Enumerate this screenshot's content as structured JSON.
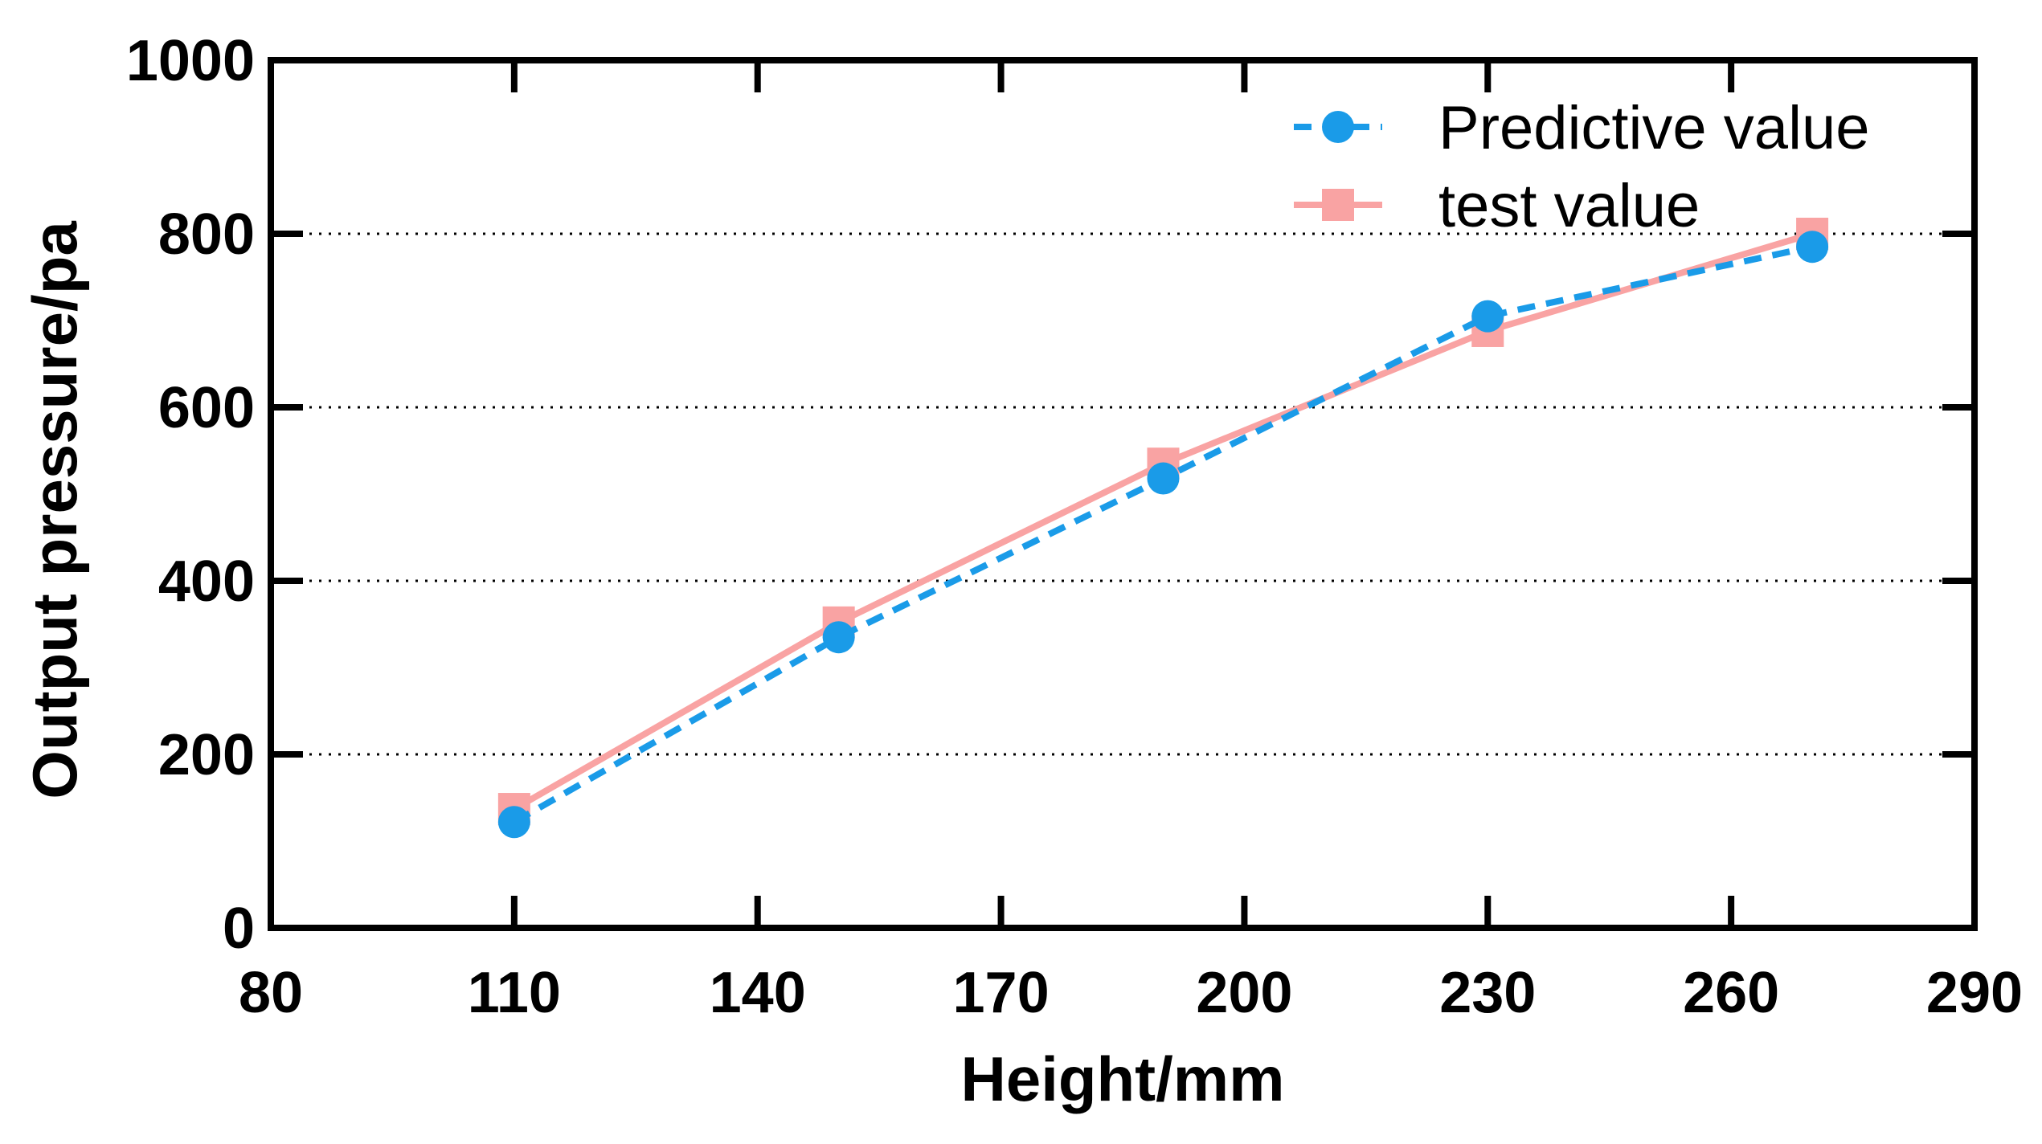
{
  "chart_data": {
    "type": "line",
    "title": "",
    "xlabel": "Height/mm",
    "ylabel": "Output pressure/pa",
    "xlim": [
      80,
      290
    ],
    "ylim": [
      0,
      1000
    ],
    "xticks": [
      80,
      110,
      140,
      170,
      200,
      230,
      260,
      290
    ],
    "yticks": [
      0,
      200,
      400,
      600,
      800,
      1000
    ],
    "grid": "horizontal dotted",
    "legend_position": "top-right",
    "x": [
      110,
      150,
      190,
      230,
      270
    ],
    "series": [
      {
        "name": "Predictive value",
        "values": [
          122,
          335,
          518,
          705,
          785
        ],
        "color": "#1a9be8",
        "line": "dashed",
        "marker": "circle"
      },
      {
        "name": "test value",
        "values": [
          137,
          352,
          535,
          688,
          800
        ],
        "color": "#f9a3a3",
        "line": "solid",
        "marker": "square"
      }
    ]
  }
}
